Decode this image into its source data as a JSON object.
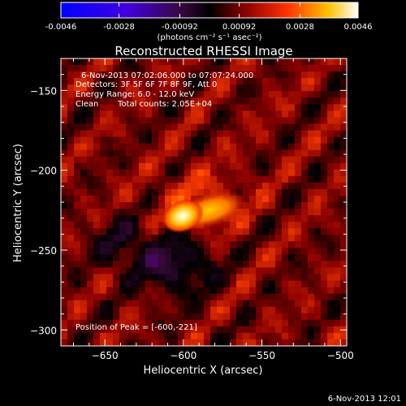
{
  "chart_data": {
    "type": "heatmap",
    "title": "Reconstructed RHESSI Image",
    "xlabel": "Heliocentric X (arcsec)",
    "ylabel": "Heliocentric Y (arcsec)",
    "xlim": [
      -678,
      -496
    ],
    "ylim": [
      -310,
      -130
    ],
    "x_ticks": [
      -650,
      -600,
      -550,
      -500
    ],
    "y_ticks": [
      -150,
      -200,
      -250,
      -300
    ],
    "colorbar": {
      "range": [
        -0.0046,
        0.0046
      ],
      "ticks": [
        "-0.0046",
        "-0.0028",
        "-0.00092",
        "0.00092",
        "0.0028",
        "0.0046"
      ],
      "label": "(photons cm⁻² s⁻¹ asec⁻²)"
    },
    "annotations": {
      "time_range": "6-Nov-2013 07:02:06.000 to 07:07:24.000",
      "detectors": "Detectors: 3F 5F 6F 7F 8F 9F, Att 0",
      "energy_range": "Energy Range: 6.0 - 12.0 keV",
      "algorithm": "Clean",
      "total_counts": "Total counts: 2.05E+04",
      "peak_position": "Position of Peak = [-600,-221]"
    },
    "peak": {
      "x": -600,
      "y": -221
    },
    "footer_timestamp": "6-Nov-2013 12:01"
  },
  "colors": {
    "background": "#000000",
    "text": "#ffffff",
    "colormap": [
      "#0000ff",
      "#5a00c8",
      "#3c0a3c",
      "#000000",
      "#8c0000",
      "#ff4000",
      "#ffd000",
      "#ffffff"
    ]
  }
}
